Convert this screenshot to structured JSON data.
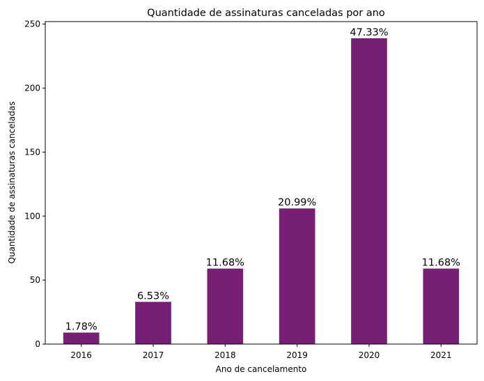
{
  "chart_data": {
    "type": "bar",
    "title": "Quantidade de assinaturas canceladas por ano",
    "xlabel": "Ano de cancelamento",
    "ylabel": "Quantidade de assinaturas canceladas",
    "categories": [
      "2016",
      "2017",
      "2018",
      "2019",
      "2020",
      "2021"
    ],
    "values": [
      9,
      33,
      59,
      106,
      239,
      59
    ],
    "data_labels": [
      "1.78%",
      "6.53%",
      "11.68%",
      "20.99%",
      "47.33%",
      "11.68%"
    ],
    "ylim": [
      0,
      252
    ],
    "yticks": [
      0,
      50,
      100,
      150,
      200,
      250
    ],
    "bar_color": "#771f74",
    "grid": false,
    "legend": "none"
  }
}
